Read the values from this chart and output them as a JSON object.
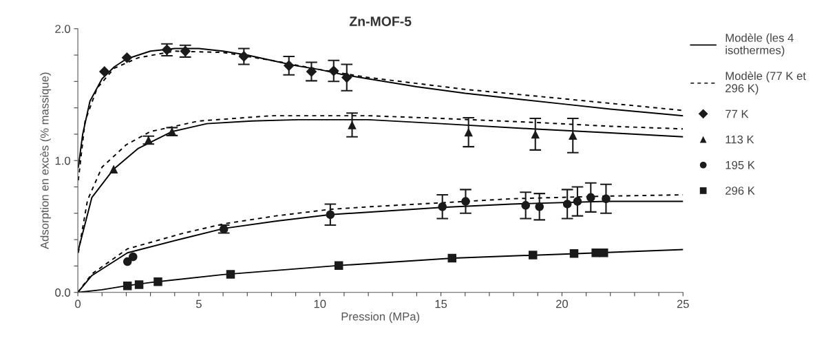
{
  "chart_data": {
    "type": "line",
    "title": "Zn-MOF-5",
    "xlabel": "Pression (MPa)",
    "ylabel": "Adsorption en excès (% massique)",
    "xlim": [
      0,
      25
    ],
    "ylim": [
      0,
      2.0
    ],
    "xticks": [
      0,
      {
        "value": 1,
        "label": null
      },
      {
        "value": 2,
        "label": null
      },
      {
        "value": 3,
        "label": null
      },
      {
        "value": 4,
        "label": null
      },
      5,
      {
        "value": 6,
        "label": null
      },
      {
        "value": 7,
        "label": null
      },
      {
        "value": 8,
        "label": null
      },
      {
        "value": 9,
        "label": null
      },
      10,
      {
        "value": 11,
        "label": null
      },
      {
        "value": 12,
        "label": null
      },
      {
        "value": 13,
        "label": null
      },
      {
        "value": 14,
        "label": null
      },
      15,
      {
        "value": 16,
        "label": null
      },
      {
        "value": 17,
        "label": null
      },
      {
        "value": 18,
        "label": null
      },
      {
        "value": 19,
        "label": null
      },
      20,
      {
        "value": 21,
        "label": null
      },
      {
        "value": 22,
        "label": null
      },
      {
        "value": 23,
        "label": null
      },
      {
        "value": 24,
        "label": null
      },
      25
    ],
    "yticks": [
      {
        "value": 0,
        "label": "0.0"
      },
      {
        "value": 0.2,
        "label": null
      },
      {
        "value": 0.4,
        "label": null
      },
      {
        "value": 0.6,
        "label": null
      },
      {
        "value": 0.8,
        "label": null
      },
      {
        "value": 1.0,
        "label": "1.0"
      },
      {
        "value": 1.2,
        "label": null
      },
      {
        "value": 1.4,
        "label": null
      },
      {
        "value": 1.6,
        "label": null
      },
      {
        "value": 1.8,
        "label": null
      },
      {
        "value": 2.0,
        "label": "2.0"
      }
    ],
    "grid": false,
    "legend": "right",
    "series": [
      {
        "name": "Modèle (les 4 isothermes)",
        "line_style": "solid",
        "marker": "none",
        "color": "#000000",
        "x": [
          0.02,
          0.2,
          0.5,
          1,
          1.5,
          2,
          3,
          4,
          5,
          6,
          7,
          8,
          9,
          10,
          11,
          12,
          14,
          16,
          18,
          20,
          22,
          25
        ],
        "values": [
          0.95,
          1.2,
          1.45,
          1.62,
          1.71,
          1.77,
          1.83,
          1.85,
          1.85,
          1.83,
          1.8,
          1.76,
          1.72,
          1.69,
          1.65,
          1.62,
          1.56,
          1.51,
          1.47,
          1.43,
          1.39,
          1.34
        ]
      },
      {
        "name": "Modèle (77 K et 296 K)",
        "line_style": "dashed",
        "marker": "none",
        "color": "#000000",
        "x": [
          0.02,
          0.3,
          0.8,
          1.5,
          2.5,
          4,
          6,
          8,
          10,
          12,
          16,
          20,
          25
        ],
        "values": [
          0.85,
          1.3,
          1.55,
          1.7,
          1.78,
          1.83,
          1.82,
          1.76,
          1.69,
          1.63,
          1.54,
          1.47,
          1.38
        ]
      },
      {
        "line_style": "solid",
        "marker": "none",
        "color": "#000000",
        "x": [
          0.02,
          0.58,
          1.48,
          2.48,
          3.89,
          5.33,
          7.2,
          9.1,
          12,
          15,
          18.8,
          22,
          25
        ],
        "values": [
          0.32,
          0.72,
          0.935,
          1.09,
          1.22,
          1.28,
          1.3,
          1.31,
          1.31,
          1.28,
          1.24,
          1.21,
          1.18
        ]
      },
      {
        "line_style": "dashed",
        "marker": "none",
        "color": "#000000",
        "x": [
          0.02,
          0.4,
          1,
          2,
          3,
          5,
          8,
          12,
          15,
          18.8,
          22,
          25
        ],
        "values": [
          0.3,
          0.7,
          0.95,
          1.12,
          1.22,
          1.3,
          1.34,
          1.34,
          1.32,
          1.29,
          1.26,
          1.24
        ]
      },
      {
        "line_style": "solid",
        "marker": "none",
        "color": "#000000",
        "x": [
          0,
          0.58,
          2.05,
          4.38,
          6.03,
          8.18,
          10.43,
          12.1,
          15.06,
          17.9,
          21.8,
          25
        ],
        "values": [
          0,
          0.128,
          0.3,
          0.41,
          0.485,
          0.54,
          0.59,
          0.61,
          0.645,
          0.67,
          0.69,
          0.69
        ]
      },
      {
        "line_style": "dashed",
        "marker": "none",
        "color": "#000000",
        "x": [
          0,
          0.58,
          2.05,
          4.38,
          6.03,
          8.18,
          10.43,
          12.1,
          15.06,
          17.9,
          21.8,
          25
        ],
        "values": [
          0,
          0.14,
          0.33,
          0.45,
          0.52,
          0.58,
          0.63,
          0.65,
          0.68,
          0.71,
          0.73,
          0.74
        ]
      },
      {
        "line_style": "solid",
        "marker": "none",
        "color": "#000000",
        "x": [
          0,
          1,
          2,
          3,
          6,
          10.8,
          15.5,
          20,
          25
        ],
        "values": [
          0,
          0.02,
          0.05,
          0.075,
          0.135,
          0.204,
          0.26,
          0.29,
          0.325
        ]
      },
      {
        "name": "77 K",
        "type": "scatter",
        "marker": "diamond",
        "color": "#1a1a1a",
        "x": [
          1.1,
          2.03,
          3.68,
          4.44,
          6.86,
          8.72,
          9.65,
          10.57,
          11.11
        ],
        "values": [
          1.675,
          1.78,
          1.84,
          1.83,
          1.79,
          1.72,
          1.675,
          1.68,
          1.63
        ],
        "errors": [
          null,
          null,
          0.045,
          0.045,
          0.06,
          0.07,
          0.07,
          0.08,
          0.1
        ]
      },
      {
        "name": "113 K",
        "type": "scatter",
        "marker": "triangle",
        "color": "#1a1a1a",
        "x": [
          1.48,
          2.92,
          3.89,
          11.33,
          16.14,
          18.9,
          20.45
        ],
        "values": [
          0.935,
          1.155,
          1.22,
          1.27,
          1.215,
          1.2,
          1.19
        ],
        "errors": [
          null,
          0.03,
          0.03,
          0.09,
          0.11,
          0.12,
          0.13
        ]
      },
      {
        "name": "195 K",
        "type": "scatter",
        "marker": "circle",
        "color": "#1a1a1a",
        "x": [
          2.05,
          2.28,
          6.03,
          10.43,
          15.06,
          16.02,
          18.5,
          19.07,
          20.22,
          20.64,
          21.19,
          21.82
        ],
        "values": [
          0.233,
          0.27,
          0.48,
          0.59,
          0.65,
          0.69,
          0.66,
          0.65,
          0.67,
          0.69,
          0.72,
          0.71
        ],
        "errors": [
          null,
          null,
          0.03,
          0.08,
          0.09,
          0.09,
          0.1,
          0.1,
          0.11,
          0.11,
          0.11,
          0.11
        ]
      },
      {
        "name": "296 K",
        "type": "scatter",
        "marker": "square",
        "color": "#1a1a1a",
        "x": [
          2.05,
          2.53,
          3.31,
          6.31,
          10.78,
          15.46,
          18.8,
          20.5,
          21.4,
          21.73
        ],
        "values": [
          0.049,
          0.058,
          0.081,
          0.137,
          0.204,
          0.26,
          0.283,
          0.295,
          0.3,
          0.3
        ]
      }
    ]
  }
}
